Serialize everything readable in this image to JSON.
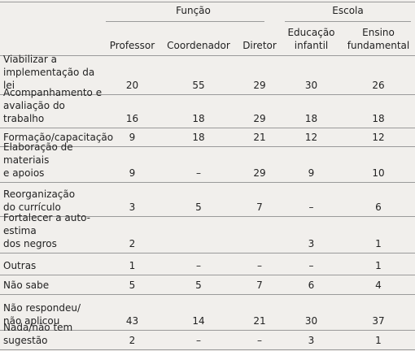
{
  "header": {
    "groups": [
      "Função",
      "Escola"
    ],
    "columns": [
      "Professor",
      "Coordenador",
      "Diretor",
      "Educação\ninfantil",
      "Ensino\nfundamental"
    ]
  },
  "rows": [
    [
      "Viabilizar a\nimplementação da lei",
      20,
      55,
      29,
      30,
      26
    ],
    [
      "Acompanhamento e\navaliação do trabalho",
      16,
      18,
      29,
      18,
      18
    ],
    [
      "Formação/capacitação",
      9,
      18,
      21,
      12,
      12
    ],
    [
      "Elaboração de materiais\ne apoios",
      9,
      "–",
      29,
      9,
      10
    ],
    [
      "Reorganização\ndo currículo",
      3,
      5,
      7,
      "–",
      6
    ],
    [
      "Fortalecer a auto-estima\ndos negros",
      2,
      "",
      "",
      3,
      1
    ],
    [
      "Outras",
      1,
      "–",
      "–",
      "–",
      1
    ],
    [
      "Não sabe",
      5,
      5,
      7,
      6,
      4
    ],
    [
      "Não respondeu/\nnão aplicou",
      43,
      14,
      21,
      30,
      37
    ],
    [
      "Nada/não tem sugestão",
      2,
      "–",
      "–",
      3,
      1
    ]
  ]
}
